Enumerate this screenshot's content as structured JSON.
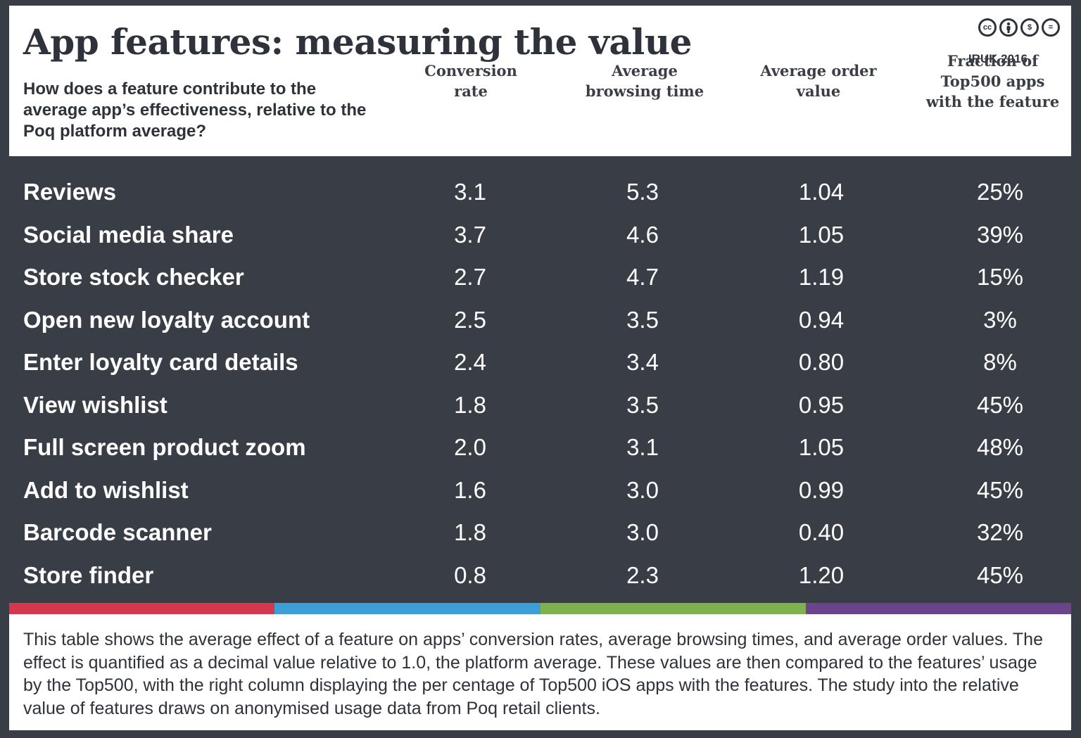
{
  "header": {
    "title": "App features: measuring the value",
    "credit": "IRUK 2016",
    "license_icons": [
      "cc",
      "by",
      "nc",
      "nd"
    ],
    "question": "How does a feature contribute to the average app’s effectiveness, relative to the Poq platform average?"
  },
  "columns": [
    {
      "lines": [
        "Conversion",
        "rate"
      ]
    },
    {
      "lines": [
        "Average",
        "browsing time"
      ]
    },
    {
      "lines": [
        "Average order",
        "value"
      ]
    },
    {
      "lines": [
        "Fraction of",
        "Top500 apps",
        "with the feature"
      ]
    }
  ],
  "chart_data": {
    "type": "table",
    "title": "App features: measuring the value",
    "columns": [
      "Conversion rate",
      "Average browsing time",
      "Average order value",
      "Fraction of Top500 apps with the feature"
    ],
    "rows": [
      {
        "feature": "Reviews",
        "values": [
          "3.1",
          "5.3",
          "1.04",
          "25%"
        ]
      },
      {
        "feature": "Social media share",
        "values": [
          "3.7",
          "4.6",
          "1.05",
          "39%"
        ]
      },
      {
        "feature": "Store stock checker",
        "values": [
          "2.7",
          "4.7",
          "1.19",
          "15%"
        ]
      },
      {
        "feature": "Open new loyalty account",
        "values": [
          "2.5",
          "3.5",
          "0.94",
          "3%"
        ]
      },
      {
        "feature": "Enter loyalty card details",
        "values": [
          "2.4",
          "3.4",
          "0.80",
          "8%"
        ]
      },
      {
        "feature": "View wishlist",
        "values": [
          "1.8",
          "3.5",
          "0.95",
          "45%"
        ]
      },
      {
        "feature": "Full screen product zoom",
        "values": [
          "2.0",
          "3.1",
          "1.05",
          "48%"
        ]
      },
      {
        "feature": "Add to wishlist",
        "values": [
          "1.6",
          "3.0",
          "0.99",
          "45%"
        ]
      },
      {
        "feature": "Barcode scanner",
        "values": [
          "1.8",
          "3.0",
          "0.40",
          "32%"
        ]
      },
      {
        "feature": "Store finder",
        "values": [
          "0.8",
          "2.3",
          "1.20",
          "45%"
        ]
      }
    ]
  },
  "colors": {
    "background": "#393e46",
    "bars": [
      "#d5374f",
      "#3e9fd6",
      "#7fb14e",
      "#6b4489"
    ]
  },
  "footer": {
    "note": "This table shows the average effect of a feature on apps’ conversion rates, average browsing times, and average order values. The effect is quantified as a decimal value relative to 1.0, the platform average. These values are then compared to the features’ usage by the Top500, with the right column displaying the per centage of Top500 iOS apps with the features. The study into the relative value of features draws on anonymised usage data from Poq retail clients."
  }
}
